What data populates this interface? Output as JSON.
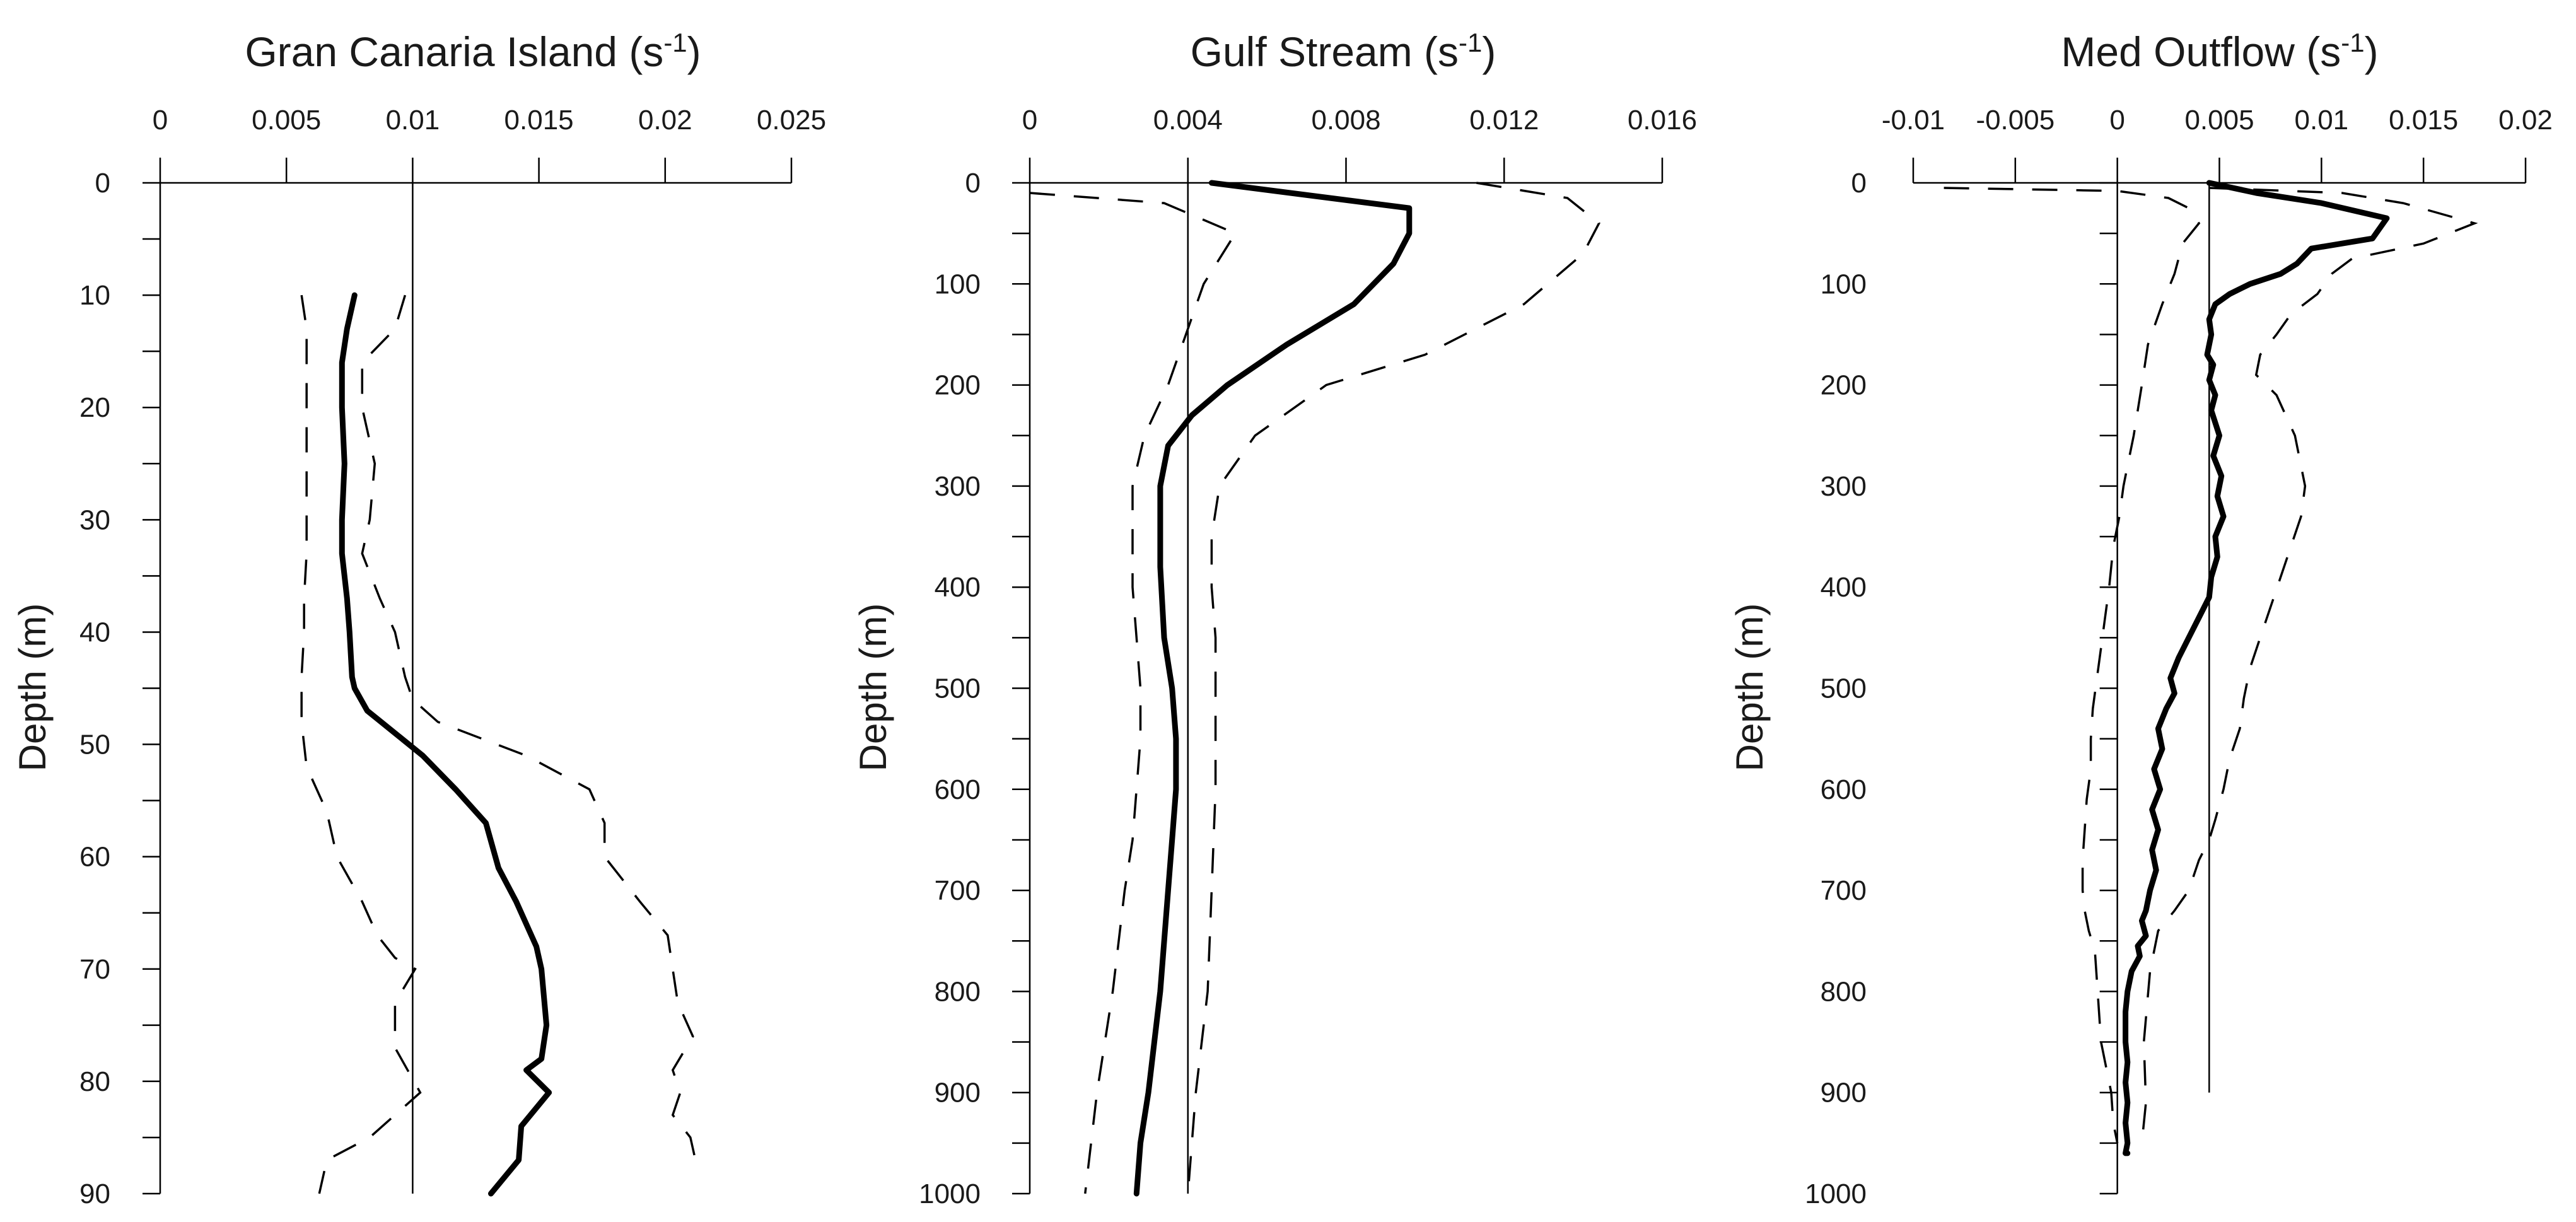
{
  "colors": {
    "line": "#000000",
    "background": "#ffffff",
    "text": "#1a1a1a"
  },
  "chart_data": [
    {
      "type": "line",
      "title": "Gran Canaria Island (s",
      "title_sup": "-1",
      "title_end": ")",
      "ylabel": "Depth (m)",
      "xlim": [
        0,
        0.025
      ],
      "ylim": [
        0,
        90
      ],
      "y_inverted": true,
      "x_axis_position": "top",
      "x_ticks": [
        0,
        0.005,
        0.01,
        0.015,
        0.02,
        0.025
      ],
      "x_tick_labels": [
        "0",
        "0.005",
        "0.01",
        "0.015",
        "0.02",
        "0.025"
      ],
      "y_ticks": [
        0,
        10,
        20,
        30,
        40,
        50,
        60,
        70,
        80,
        90
      ],
      "y_tick_labels": [
        "0",
        "10",
        "20",
        "30",
        "40",
        "50",
        "60",
        "70",
        "80",
        "90"
      ],
      "y_minor_step": 5,
      "reference_x": 0.01,
      "series": [
        {
          "style": "solid",
          "x": [
            0.0077,
            0.0074,
            0.0072,
            0.0072,
            0.0073,
            0.0072,
            0.0072,
            0.0074,
            0.0075,
            0.0076,
            0.0077,
            0.0082,
            0.0093,
            0.0104,
            0.0117,
            0.0129,
            0.0134,
            0.0141,
            0.0149,
            0.0151,
            0.0153,
            0.0151,
            0.0145,
            0.0154,
            0.0143,
            0.0142,
            0.0131
          ],
          "y": [
            10,
            13,
            16,
            20,
            25,
            30,
            33,
            37,
            40,
            44,
            45,
            47,
            49,
            51,
            54,
            57,
            61,
            64,
            68,
            70,
            75,
            78,
            79,
            81,
            84,
            87,
            90
          ]
        },
        {
          "style": "dashed",
          "x": [
            0.0056,
            0.0058,
            0.0058,
            0.0058,
            0.0058,
            0.0058,
            0.0058,
            0.0057,
            0.0057,
            0.0056,
            0.0056,
            0.0058,
            0.0066,
            0.007,
            0.008,
            0.0086,
            0.0093,
            0.0101,
            0.0093,
            0.0093,
            0.0103,
            0.0083,
            0.0066,
            0.0063
          ],
          "y": [
            10,
            13,
            16,
            20,
            25,
            30,
            33,
            37,
            40,
            44,
            48,
            52,
            56,
            60,
            64,
            67,
            69,
            70,
            73,
            77,
            81,
            85,
            87,
            90
          ]
        },
        {
          "style": "dashed",
          "x": [
            0.0097,
            0.0093,
            0.008,
            0.008,
            0.0085,
            0.0083,
            0.008,
            0.0087,
            0.0093,
            0.0097,
            0.01,
            0.011,
            0.0145,
            0.017,
            0.0176,
            0.0176,
            0.019,
            0.0201,
            0.0203,
            0.0205,
            0.0211,
            0.0203,
            0.0206,
            0.0203,
            0.021,
            0.0212,
            0.0211
          ],
          "y": [
            10,
            13,
            16,
            20,
            25,
            30,
            33,
            37,
            40,
            44,
            46,
            48,
            51,
            54,
            57,
            60,
            64,
            67,
            70,
            73,
            76,
            79,
            81,
            83,
            85,
            87,
            88
          ]
        }
      ]
    },
    {
      "type": "line",
      "title": "Gulf Stream (s",
      "title_sup": "-1",
      "title_end": ")",
      "ylabel": "Depth (m)",
      "xlim": [
        0,
        0.016
      ],
      "ylim": [
        0,
        1000
      ],
      "y_inverted": true,
      "x_axis_position": "top",
      "x_ticks": [
        0,
        0.004,
        0.008,
        0.012,
        0.016
      ],
      "x_tick_labels": [
        "0",
        "0.004",
        "0.008",
        "0.012",
        "0.016"
      ],
      "y_ticks": [
        0,
        100,
        200,
        300,
        400,
        500,
        600,
        700,
        800,
        900,
        1000
      ],
      "y_tick_labels": [
        "0",
        "100",
        "200",
        "300",
        "400",
        "500",
        "600",
        "700",
        "800",
        "900",
        "1000"
      ],
      "y_minor_step": 50,
      "reference_x": 0.004,
      "series": [
        {
          "style": "solid",
          "x": [
            0.0046,
            0.0096,
            0.0096,
            0.0092,
            0.0082,
            0.0065,
            0.005,
            0.0041,
            0.0035,
            0.0033,
            0.0033,
            0.0034,
            0.0036,
            0.0037,
            0.0037,
            0.0036,
            0.0035,
            0.0033,
            0.003,
            0.0028,
            0.0027
          ],
          "y": [
            0,
            25,
            50,
            80,
            120,
            160,
            200,
            230,
            260,
            300,
            380,
            450,
            500,
            550,
            600,
            650,
            700,
            800,
            900,
            950,
            1000
          ]
        },
        {
          "style": "dashed",
          "x": [
            0.0,
            0.0034,
            0.0052,
            0.0044,
            0.0035,
            0.0029,
            0.0026,
            0.0026,
            0.0026,
            0.0027,
            0.0028,
            0.0028,
            0.0027,
            0.0026,
            0.0024,
            0.0021,
            0.0017,
            0.0014
          ],
          "y": [
            10,
            20,
            50,
            100,
            200,
            250,
            300,
            350,
            400,
            450,
            500,
            550,
            600,
            650,
            700,
            800,
            900,
            1000
          ],
          "start_from_y": 0
        },
        {
          "style": "dashed",
          "x": [
            0.0113,
            0.0136,
            0.0144,
            0.014,
            0.0125,
            0.01,
            0.0075,
            0.0057,
            0.0048,
            0.0046,
            0.0046,
            0.0047,
            0.0047,
            0.0047,
            0.0046,
            0.0045,
            0.0042,
            0.004
          ],
          "y": [
            0,
            15,
            40,
            70,
            120,
            170,
            200,
            250,
            300,
            350,
            400,
            450,
            500,
            600,
            700,
            800,
            900,
            1000
          ]
        }
      ]
    },
    {
      "type": "line",
      "title": "Med Outflow (s",
      "title_sup": "-1",
      "title_end": ")",
      "ylabel": "Depth (m)",
      "xlim": [
        -0.01,
        0.02
      ],
      "ylim": [
        0,
        1000
      ],
      "y_inverted": true,
      "x_axis_position": "top",
      "x_ticks": [
        -0.01,
        -0.005,
        0,
        0.005,
        0.01,
        0.015,
        0.02
      ],
      "x_tick_labels": [
        "-0.01",
        "-0.005",
        "0",
        "0.005",
        "0.01",
        "0.015",
        "0.02"
      ],
      "y_ticks": [
        0,
        100,
        200,
        300,
        400,
        500,
        600,
        700,
        800,
        900,
        1000
      ],
      "y_tick_labels": [
        "0",
        "100",
        "200",
        "300",
        "400",
        "500",
        "600",
        "700",
        "800",
        "900",
        "1000"
      ],
      "y_minor_step": 50,
      "reference_x": 0.0045,
      "reference_ymax": 900,
      "series": [
        {
          "style": "solid",
          "x": [
            0.0045,
            0.0068,
            0.01,
            0.0132,
            0.0125,
            0.0095,
            0.0088,
            0.008,
            0.0065,
            0.0055,
            0.0048,
            0.0045,
            0.0046,
            0.0044,
            0.0047,
            0.0045,
            0.0048,
            0.0046,
            0.005,
            0.0047,
            0.0051,
            0.0049,
            0.0052,
            0.0048,
            0.0049,
            0.0046,
            0.0045,
            0.004,
            0.0035,
            0.003,
            0.0026,
            0.0028,
            0.0024,
            0.002,
            0.0022,
            0.0018,
            0.0021,
            0.0017,
            0.002,
            0.0017,
            0.0019,
            0.0016,
            0.0014,
            0.0012,
            0.0014,
            0.001,
            0.0011,
            0.0007,
            0.0005,
            0.0004,
            0.0004,
            0.0005,
            0.0004,
            0.0005,
            0.0004,
            0.0005,
            0.0004,
            0.0005
          ],
          "y": [
            0,
            10,
            20,
            35,
            55,
            65,
            80,
            90,
            100,
            110,
            120,
            135,
            150,
            170,
            180,
            195,
            210,
            225,
            250,
            270,
            290,
            310,
            330,
            350,
            370,
            390,
            410,
            430,
            450,
            470,
            490,
            505,
            520,
            540,
            560,
            580,
            600,
            620,
            640,
            660,
            680,
            700,
            720,
            730,
            745,
            755,
            765,
            780,
            800,
            820,
            850,
            870,
            890,
            910,
            930,
            950,
            960,
            960
          ]
        },
        {
          "style": "dashed",
          "x": [
            -0.0085,
            0.0,
            0.0025,
            0.0035,
            0.004,
            0.0032,
            0.0028,
            0.0022,
            0.0015,
            0.0012,
            0.0008,
            0.0005,
            0.0003,
            0.0001,
            -0.0002,
            -0.0004,
            -0.0006,
            -0.0008,
            -0.001,
            -0.0012,
            -0.0013,
            -0.0013,
            -0.0015,
            -0.0016,
            -0.0017,
            -0.0017,
            -0.0016,
            -0.0014,
            -0.0011,
            -0.0008,
            -0.0003,
            -0.0002,
            0.0
          ],
          "y": [
            5,
            8,
            15,
            25,
            40,
            60,
            90,
            120,
            160,
            200,
            250,
            280,
            300,
            330,
            360,
            400,
            430,
            460,
            490,
            520,
            550,
            580,
            610,
            640,
            670,
            700,
            720,
            740,
            760,
            850,
            900,
            930,
            950
          ]
        },
        {
          "style": "dashed",
          "x": [
            0.0045,
            0.011,
            0.014,
            0.0175,
            0.015,
            0.0115,
            0.0105,
            0.0098,
            0.0085,
            0.0078,
            0.007,
            0.0068,
            0.0078,
            0.0087,
            0.0092,
            0.009,
            0.0085,
            0.008,
            0.0075,
            0.007,
            0.0065,
            0.0062,
            0.006,
            0.0055,
            0.0052,
            0.0048,
            0.0045,
            0.004,
            0.0035,
            0.0028,
            0.002,
            0.0016,
            0.0013,
            0.0014,
            0.0012
          ],
          "y": [
            5,
            10,
            20,
            40,
            60,
            75,
            90,
            110,
            130,
            150,
            170,
            190,
            210,
            250,
            300,
            330,
            360,
            390,
            420,
            450,
            480,
            510,
            540,
            570,
            600,
            630,
            650,
            670,
            700,
            720,
            740,
            780,
            850,
            910,
            950
          ]
        }
      ]
    }
  ]
}
